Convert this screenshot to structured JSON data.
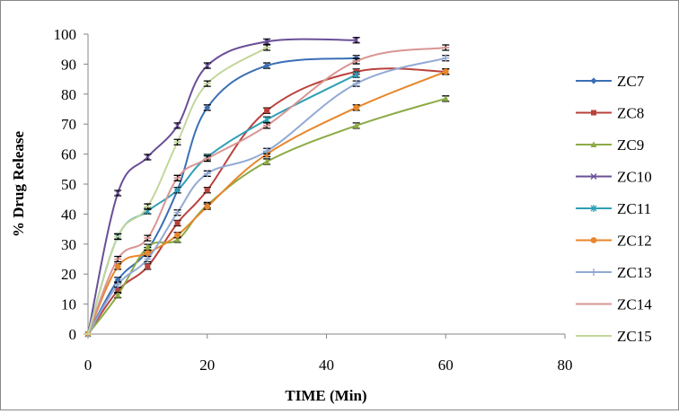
{
  "chart_data": {
    "type": "line",
    "title": "",
    "xlabel": "TIME (Min)",
    "ylabel": "% Drug Release",
    "xlim": [
      0,
      80
    ],
    "ylim": [
      0,
      100
    ],
    "xticks": [
      0,
      20,
      40,
      60,
      80
    ],
    "yticks": [
      0,
      10,
      20,
      30,
      40,
      50,
      60,
      70,
      80,
      90,
      100
    ],
    "grid": false,
    "legend_position": "right",
    "error_bars": true,
    "series": [
      {
        "name": "ZC7",
        "color": "#3b6fb6",
        "marker": "diamond",
        "x": [
          0,
          5,
          10,
          15,
          20,
          30,
          45
        ],
        "y": [
          0,
          18,
          28,
          48,
          75.5,
          89.5,
          92
        ]
      },
      {
        "name": "ZC8",
        "color": "#b9413c",
        "marker": "square",
        "x": [
          0,
          5,
          10,
          15,
          20,
          30,
          45,
          60
        ],
        "y": [
          0,
          14.5,
          22.5,
          37,
          48,
          74.5,
          87.5,
          87.5
        ]
      },
      {
        "name": "ZC9",
        "color": "#8cab46",
        "marker": "triangle",
        "x": [
          0,
          5,
          10,
          15,
          20,
          30,
          45,
          60
        ],
        "y": [
          0,
          13,
          29,
          31.5,
          43,
          57.5,
          69.5,
          78.5
        ]
      },
      {
        "name": "ZC10",
        "color": "#6a4f97",
        "marker": "x",
        "x": [
          0,
          5,
          10,
          15,
          20,
          30,
          45
        ],
        "y": [
          0,
          47,
          59,
          69.5,
          89.5,
          97.5,
          98
        ]
      },
      {
        "name": "ZC11",
        "color": "#2fa0b5",
        "marker": "star",
        "x": [
          0,
          5,
          10,
          15,
          20,
          30,
          45
        ],
        "y": [
          0,
          32.5,
          41,
          48,
          59,
          71.5,
          86.5
        ]
      },
      {
        "name": "ZC12",
        "color": "#e8862a",
        "marker": "circle",
        "x": [
          0,
          5,
          10,
          15,
          20,
          30,
          45,
          60
        ],
        "y": [
          0,
          22.5,
          27,
          33,
          42.5,
          60,
          75.5,
          87.5
        ]
      },
      {
        "name": "ZC13",
        "color": "#92a9d4",
        "marker": "plus",
        "x": [
          0,
          5,
          10,
          15,
          20,
          30,
          45,
          60
        ],
        "y": [
          0,
          16.5,
          25,
          40.5,
          53.5,
          61,
          83.5,
          92
        ]
      },
      {
        "name": "ZC14",
        "color": "#d99594",
        "marker": "dash",
        "x": [
          0,
          5,
          10,
          15,
          20,
          30,
          45,
          60
        ],
        "y": [
          0,
          25,
          32,
          52,
          58.5,
          69.5,
          91,
          95.5
        ]
      },
      {
        "name": "ZC15",
        "color": "#c3d69b",
        "marker": "dash",
        "x": [
          0,
          5,
          10,
          15,
          20,
          30
        ],
        "y": [
          0,
          32.5,
          42.5,
          64,
          83.5,
          95.5
        ]
      }
    ]
  }
}
